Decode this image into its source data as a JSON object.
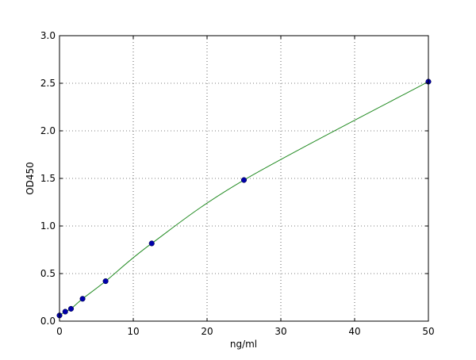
{
  "chart_data": {
    "type": "scatter",
    "title": "",
    "xlabel": "ng/ml",
    "ylabel": "OD450",
    "xlim": [
      0,
      50
    ],
    "ylim": [
      0,
      3.0
    ],
    "xticks": [
      "0",
      "10",
      "20",
      "30",
      "40",
      "50"
    ],
    "yticks": [
      "0.0",
      "0.5",
      "1.0",
      "1.5",
      "2.0",
      "2.5",
      "3.0"
    ],
    "grid": true,
    "series": [
      {
        "x": [
          0,
          0.78,
          1.56,
          3.125,
          6.25,
          12.5,
          25,
          50
        ],
        "y": [
          0.06,
          0.1,
          0.13,
          0.235,
          0.42,
          0.817,
          1.483,
          2.517
        ],
        "marker_color": "#0000aa",
        "fit_line_color": "#228b22"
      }
    ]
  }
}
